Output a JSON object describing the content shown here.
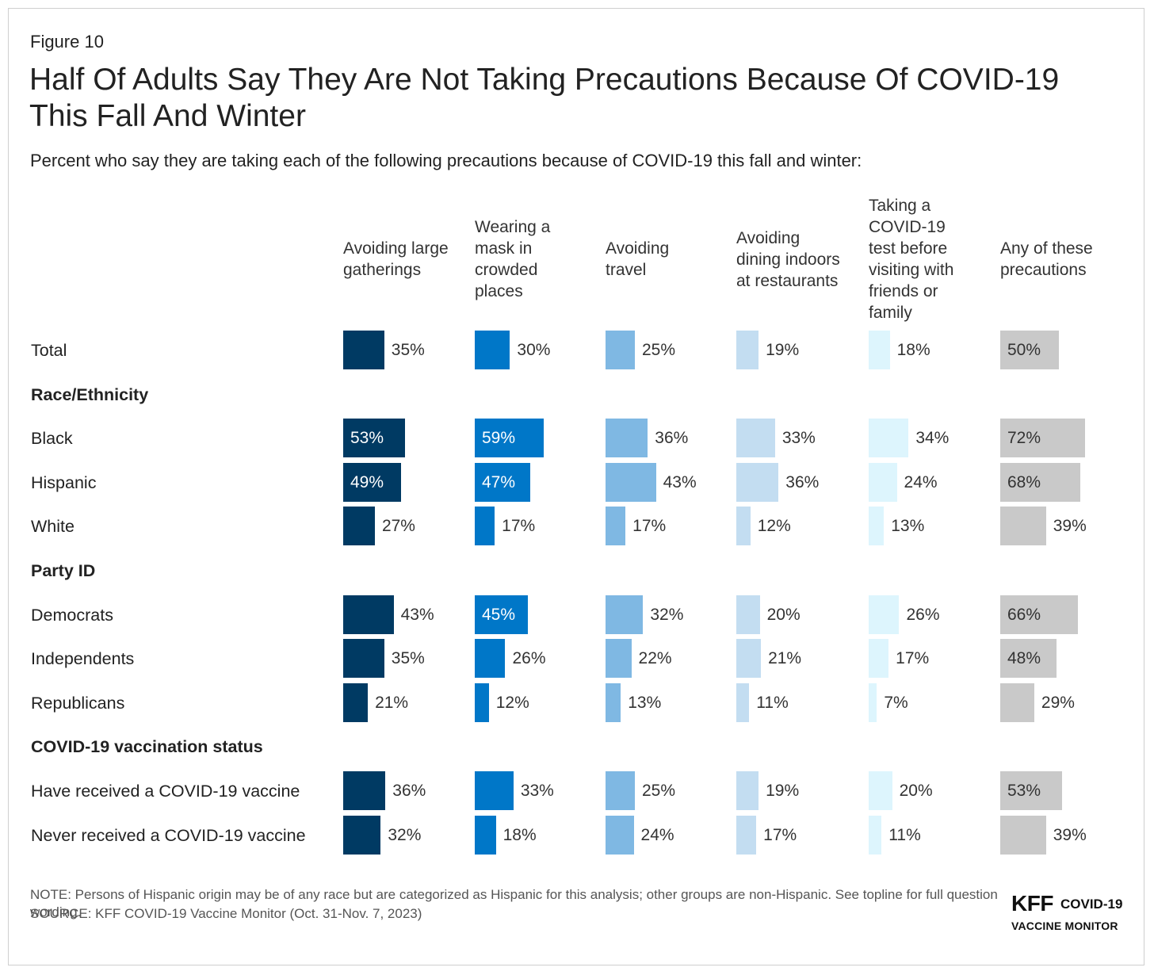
{
  "figure_label": "Figure 10",
  "title": "Half Of Adults Say They Are Not Taking Precautions Because Of COVID-19 This Fall And Winter",
  "subtitle": "Percent who say they are taking each of the following precautions because of COVID-19 this fall and winter:",
  "note": "NOTE: Persons of Hispanic origin may be of any race but are categorized as Hispanic for this analysis; other groups are non-Hispanic. See topline for full question wording.",
  "source": "SOURCE: KFF COVID-19 Vaccine Monitor (Oct. 31-Nov. 7, 2023)",
  "logo": {
    "brand": "KFF",
    "line1": "COVID-19",
    "line2": "VACCINE MONITOR"
  },
  "chart_data": {
    "type": "bar",
    "series": [
      {
        "name": "Avoiding large gatherings",
        "color": "#003a63"
      },
      {
        "name": "Wearing a mask in crowded places",
        "color": "#0077c8"
      },
      {
        "name": "Avoiding travel",
        "color": "#7fb8e3"
      },
      {
        "name": "Avoiding dining indoors at restaurants",
        "color": "#c3ddf1"
      },
      {
        "name": "Taking a COVID-19 test before visiting with friends or family",
        "color": "#ddf5fd"
      },
      {
        "name": "Any of these precautions",
        "color": "#c9c9c9"
      }
    ],
    "rows": [
      {
        "kind": "item",
        "label": "Total",
        "values": [
          35,
          30,
          25,
          19,
          18,
          50
        ]
      },
      {
        "kind": "group",
        "label": "Race/Ethnicity"
      },
      {
        "kind": "item",
        "label": "Black",
        "values": [
          53,
          59,
          36,
          33,
          34,
          72
        ]
      },
      {
        "kind": "item",
        "label": "Hispanic",
        "values": [
          49,
          47,
          43,
          36,
          24,
          68
        ]
      },
      {
        "kind": "item",
        "label": "White",
        "values": [
          27,
          17,
          17,
          12,
          13,
          39
        ]
      },
      {
        "kind": "group",
        "label": "Party ID"
      },
      {
        "kind": "item",
        "label": "Democrats",
        "values": [
          43,
          45,
          32,
          20,
          26,
          66
        ]
      },
      {
        "kind": "item",
        "label": "Independents",
        "values": [
          35,
          26,
          22,
          21,
          17,
          48
        ]
      },
      {
        "kind": "item",
        "label": "Republicans",
        "values": [
          21,
          12,
          13,
          11,
          7,
          29
        ]
      },
      {
        "kind": "group",
        "label": "COVID-19 vaccination status"
      },
      {
        "kind": "item",
        "label": "Have received a COVID-19 vaccine",
        "values": [
          36,
          33,
          25,
          19,
          20,
          53
        ]
      },
      {
        "kind": "item",
        "label": "Never received a COVID-19 vaccine",
        "values": [
          32,
          18,
          24,
          17,
          11,
          39
        ]
      }
    ],
    "value_format": "percent",
    "xlim": [
      0,
      100
    ]
  }
}
